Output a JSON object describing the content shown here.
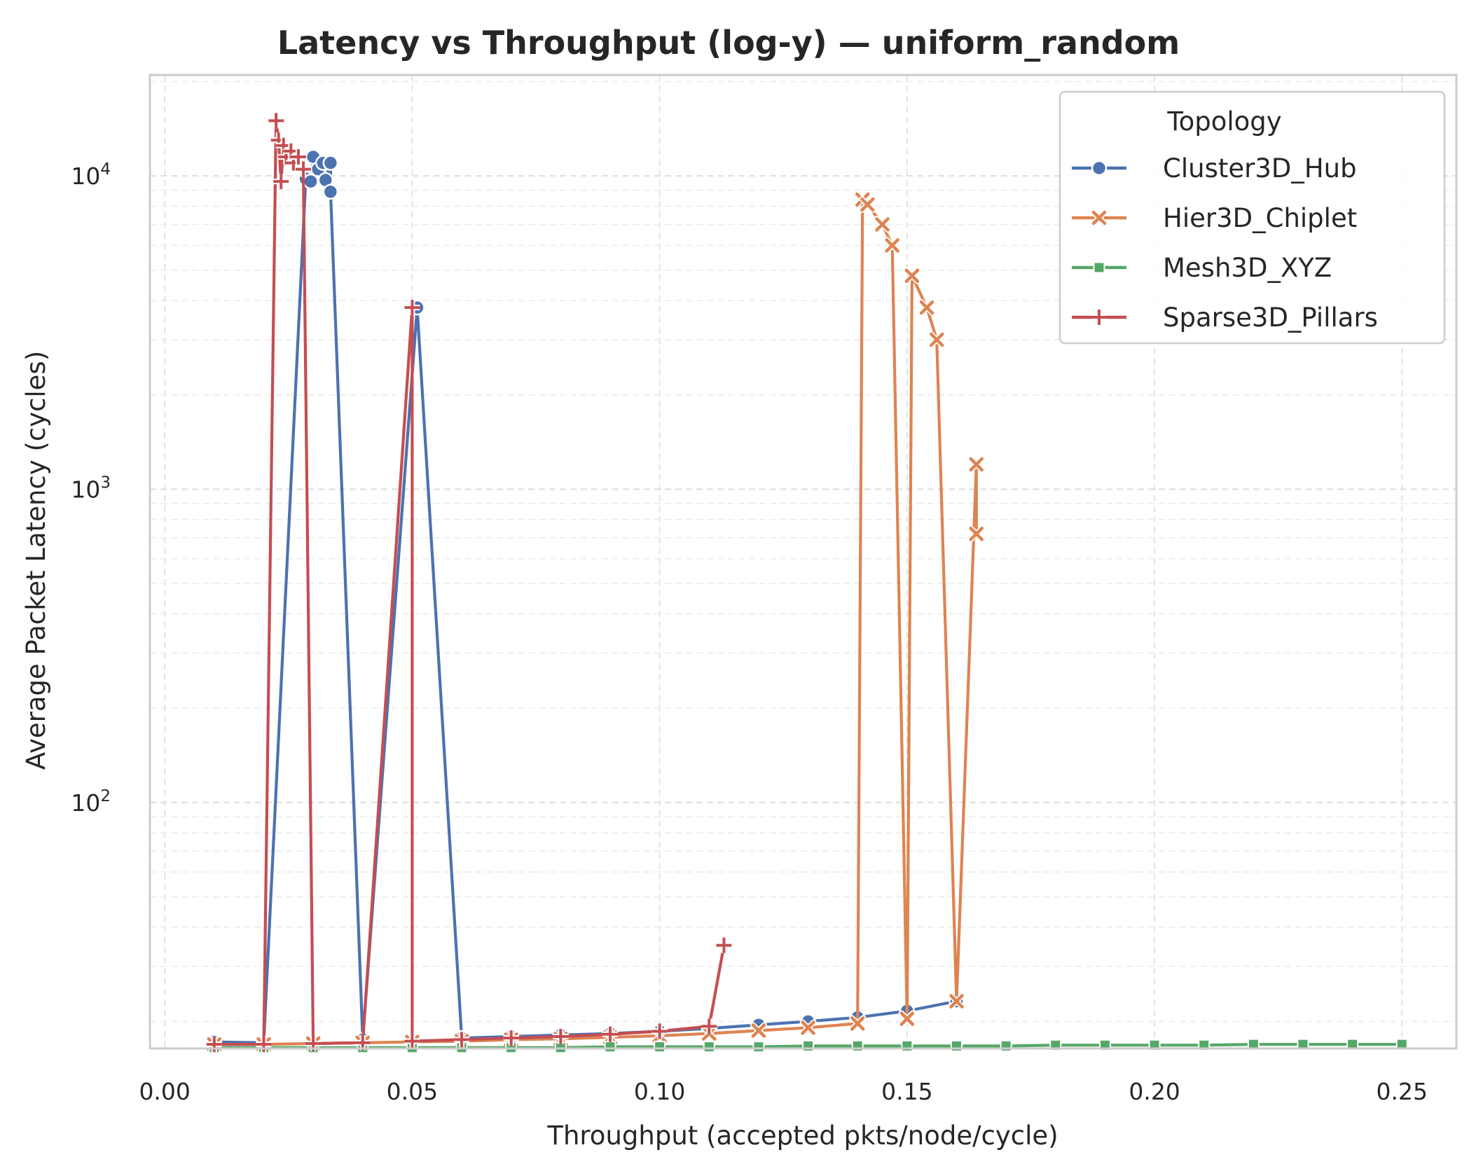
{
  "chart_data": {
    "type": "line",
    "title": "Latency vs Throughput (log-y) — uniform_random",
    "xlabel": "Throughput (accepted pkts/node/cycle)",
    "ylabel": "Average Packet Latency (cycles)",
    "xlim": [
      -0.003,
      0.261
    ],
    "ylim": [
      16.4,
      21000
    ],
    "yscale": "log",
    "grid": true,
    "x_ticks": [
      "0.00",
      "0.05",
      "0.10",
      "0.15",
      "0.20",
      "0.25"
    ],
    "x_tick_values": [
      0.0,
      0.05,
      0.1,
      0.15,
      0.2,
      0.25
    ],
    "y_ticks": [
      {
        "base": "10",
        "exp": "2",
        "value": 100
      },
      {
        "base": "10",
        "exp": "3",
        "value": 1000
      },
      {
        "base": "10",
        "exp": "4",
        "value": 10000
      }
    ],
    "legend": {
      "title": "Topology",
      "position": "top-right"
    },
    "series": [
      {
        "name": "Cluster3D_Hub",
        "color": "#4c72b0",
        "marker": "circle",
        "points": [
          [
            0.01,
            17.2
          ],
          [
            0.02,
            17.1
          ],
          [
            0.0285,
            9800
          ],
          [
            0.0295,
            9600
          ],
          [
            0.03,
            11500
          ],
          [
            0.031,
            10500
          ],
          [
            0.032,
            11000
          ],
          [
            0.0325,
            9700
          ],
          [
            0.0335,
            11000
          ],
          [
            0.0335,
            8900
          ],
          [
            0.04,
            17.5
          ],
          [
            0.051,
            3800
          ],
          [
            0.06,
            17.7
          ],
          [
            0.07,
            17.9
          ],
          [
            0.08,
            18.1
          ],
          [
            0.09,
            18.3
          ],
          [
            0.1,
            18.6
          ],
          [
            0.11,
            19.0
          ],
          [
            0.12,
            19.5
          ],
          [
            0.13,
            20.0
          ],
          [
            0.14,
            20.6
          ],
          [
            0.15,
            21.6
          ],
          [
            0.16,
            23.2
          ]
        ]
      },
      {
        "name": "Hier3D_Chiplet",
        "color": "#dd8452",
        "marker": "x",
        "points": [
          [
            0.01,
            16.9
          ],
          [
            0.02,
            16.9
          ],
          [
            0.03,
            17.0
          ],
          [
            0.04,
            17.1
          ],
          [
            0.05,
            17.2
          ],
          [
            0.06,
            17.3
          ],
          [
            0.07,
            17.5
          ],
          [
            0.08,
            17.6
          ],
          [
            0.09,
            17.8
          ],
          [
            0.1,
            18.0
          ],
          [
            0.11,
            18.3
          ],
          [
            0.12,
            18.7
          ],
          [
            0.13,
            19.1
          ],
          [
            0.14,
            19.7
          ],
          [
            0.141,
            8400
          ],
          [
            0.142,
            8100
          ],
          [
            0.145,
            7000
          ],
          [
            0.147,
            6000
          ],
          [
            0.15,
            20.4
          ],
          [
            0.151,
            4800
          ],
          [
            0.154,
            3800
          ],
          [
            0.156,
            3000
          ],
          [
            0.16,
            23.2
          ],
          [
            0.164,
            1200
          ],
          [
            0.164,
            720
          ]
        ]
      },
      {
        "name": "Mesh3D_XYZ",
        "color": "#55a868",
        "marker": "square",
        "points": [
          [
            0.01,
            16.5
          ],
          [
            0.02,
            16.5
          ],
          [
            0.03,
            16.5
          ],
          [
            0.04,
            16.5
          ],
          [
            0.05,
            16.5
          ],
          [
            0.06,
            16.5
          ],
          [
            0.07,
            16.5
          ],
          [
            0.08,
            16.5
          ],
          [
            0.09,
            16.6
          ],
          [
            0.1,
            16.6
          ],
          [
            0.11,
            16.6
          ],
          [
            0.12,
            16.6
          ],
          [
            0.13,
            16.7
          ],
          [
            0.14,
            16.7
          ],
          [
            0.15,
            16.7
          ],
          [
            0.16,
            16.7
          ],
          [
            0.17,
            16.7
          ],
          [
            0.18,
            16.8
          ],
          [
            0.19,
            16.8
          ],
          [
            0.2,
            16.8
          ],
          [
            0.21,
            16.8
          ],
          [
            0.22,
            16.9
          ],
          [
            0.23,
            16.9
          ],
          [
            0.24,
            16.9
          ],
          [
            0.25,
            16.9
          ]
        ]
      },
      {
        "name": "Sparse3D_Pillars",
        "color": "#c44e52",
        "marker": "plus",
        "points": [
          [
            0.01,
            16.9
          ],
          [
            0.02,
            16.9
          ],
          [
            0.0225,
            15000
          ],
          [
            0.023,
            13000
          ],
          [
            0.0235,
            9600
          ],
          [
            0.024,
            12500
          ],
          [
            0.0245,
            11500
          ],
          [
            0.0255,
            12000
          ],
          [
            0.026,
            11000
          ],
          [
            0.027,
            11500
          ],
          [
            0.028,
            10500
          ],
          [
            0.03,
            17.0
          ],
          [
            0.04,
            17.1
          ],
          [
            0.05,
            3800
          ],
          [
            0.05,
            17.3
          ],
          [
            0.06,
            17.5
          ],
          [
            0.07,
            17.7
          ],
          [
            0.08,
            17.9
          ],
          [
            0.09,
            18.2
          ],
          [
            0.1,
            18.6
          ],
          [
            0.11,
            19.3
          ],
          [
            0.113,
            35
          ]
        ]
      }
    ]
  }
}
